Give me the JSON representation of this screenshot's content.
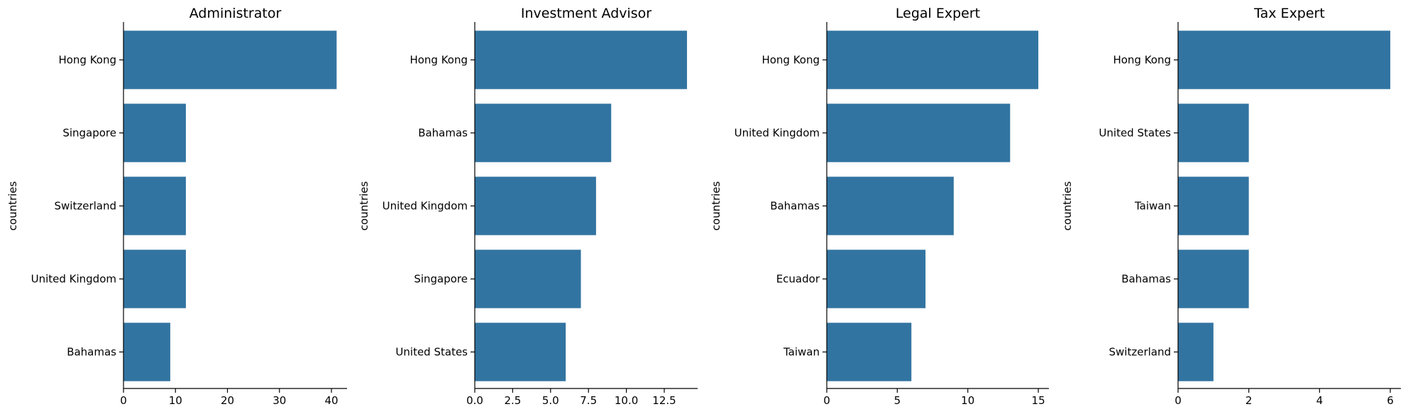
{
  "chart_data": [
    {
      "type": "bar",
      "orientation": "horizontal",
      "title": "Administrator",
      "ylabel": "countries",
      "xlabel": "",
      "categories": [
        "Hong Kong",
        "Singapore",
        "Switzerland",
        "United Kingdom",
        "Bahamas"
      ],
      "values": [
        41,
        12,
        12,
        12,
        9
      ],
      "xlim": [
        0,
        43
      ],
      "xticks": [
        0,
        10,
        20,
        30,
        40
      ],
      "xtick_labels": [
        "0",
        "10",
        "20",
        "30",
        "40"
      ],
      "color": "#3274a1",
      "grid": false
    },
    {
      "type": "bar",
      "orientation": "horizontal",
      "title": "Investment Advisor",
      "ylabel": "countries",
      "xlabel": "",
      "categories": [
        "Hong Kong",
        "Bahamas",
        "United Kingdom",
        "Singapore",
        "United States"
      ],
      "values": [
        14,
        9,
        8,
        7,
        6
      ],
      "xlim": [
        0,
        14.7
      ],
      "xticks": [
        0,
        2.5,
        5,
        7.5,
        10,
        12.5
      ],
      "xtick_labels": [
        "0.0",
        "2.5",
        "5.0",
        "7.5",
        "10.0",
        "12.5"
      ],
      "color": "#3274a1",
      "grid": false
    },
    {
      "type": "bar",
      "orientation": "horizontal",
      "title": "Legal Expert",
      "ylabel": "countries",
      "xlabel": "",
      "categories": [
        "Hong Kong",
        "United Kingdom",
        "Bahamas",
        "Ecuador",
        "Taiwan"
      ],
      "values": [
        15,
        13,
        9,
        7,
        6
      ],
      "xlim": [
        0,
        15.75
      ],
      "xticks": [
        0,
        5,
        10,
        15
      ],
      "xtick_labels": [
        "0",
        "5",
        "10",
        "15"
      ],
      "color": "#3274a1",
      "grid": false
    },
    {
      "type": "bar",
      "orientation": "horizontal",
      "title": "Tax Expert",
      "ylabel": "countries",
      "xlabel": "",
      "categories": [
        "Hong Kong",
        "United States",
        "Taiwan",
        "Bahamas",
        "Switzerland"
      ],
      "values": [
        6,
        2,
        2,
        2,
        1
      ],
      "xlim": [
        0,
        6.3
      ],
      "xticks": [
        0,
        2,
        4,
        6
      ],
      "xtick_labels": [
        "0",
        "2",
        "4",
        "6"
      ],
      "color": "#3274a1",
      "grid": false
    }
  ]
}
